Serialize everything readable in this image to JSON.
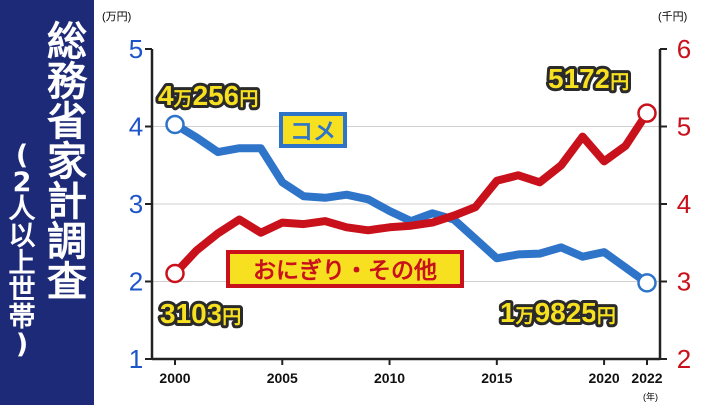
{
  "sidebar": {
    "title_chars": [
      "総",
      "務",
      "省",
      "家",
      "計",
      "調",
      "査"
    ],
    "subtitle_chars": [
      "(",
      "2",
      "人",
      "以",
      "上",
      "世",
      "帯",
      ")"
    ]
  },
  "colors": {
    "sidebar_bg": "#1d2a78",
    "rice": "#2e74c9",
    "onigiri": "#c8111b",
    "left_axis_text": "#1d55c8",
    "right_axis_text": "#c8111b",
    "callout_fill": "#f7e020"
  },
  "labels": {
    "left_unit": "(万円)",
    "right_unit": "(千円)",
    "x_unit": "(年)",
    "rice_start": {
      "num1": "4",
      "man": "万",
      "num2": "256",
      "yen": "円"
    },
    "rice_end": {
      "num1": "1",
      "man": "万",
      "num2": "9825",
      "yen": "円"
    },
    "onigiri_start": {
      "num": "3103",
      "yen": "円"
    },
    "onigiri_end": {
      "num": "5172",
      "yen": "円"
    }
  },
  "chart_data": {
    "type": "line",
    "x": [
      2000,
      2001,
      2002,
      2003,
      2004,
      2005,
      2006,
      2007,
      2008,
      2009,
      2010,
      2011,
      2012,
      2013,
      2014,
      2015,
      2016,
      2017,
      2018,
      2019,
      2020,
      2021,
      2022
    ],
    "x_ticks": [
      "2000",
      "2005",
      "2010",
      "2015",
      "2020",
      "2022"
    ],
    "left_axis": {
      "ticks": [
        "1",
        "2",
        "3",
        "4",
        "5"
      ],
      "ylim": [
        1,
        5
      ],
      "unit": "(万円)"
    },
    "right_axis": {
      "ticks": [
        "2",
        "3",
        "4",
        "5",
        "6"
      ],
      "ylim": [
        2,
        6
      ],
      "unit": "(千円)"
    },
    "series": [
      {
        "name": "コメ",
        "axis": "left",
        "values": [
          4.0256,
          3.86,
          3.67,
          3.72,
          3.72,
          3.28,
          3.1,
          3.08,
          3.12,
          3.06,
          2.91,
          2.78,
          2.88,
          2.8,
          2.55,
          2.3,
          2.35,
          2.36,
          2.44,
          2.32,
          2.38,
          2.18,
          1.9825
        ]
      },
      {
        "name": "おにぎり・その他",
        "axis": "right",
        "values": [
          3.103,
          3.4,
          3.62,
          3.8,
          3.63,
          3.76,
          3.74,
          3.78,
          3.7,
          3.66,
          3.7,
          3.72,
          3.76,
          3.85,
          3.96,
          4.3,
          4.37,
          4.28,
          4.5,
          4.87,
          4.55,
          4.75,
          5.172
        ]
      }
    ]
  }
}
